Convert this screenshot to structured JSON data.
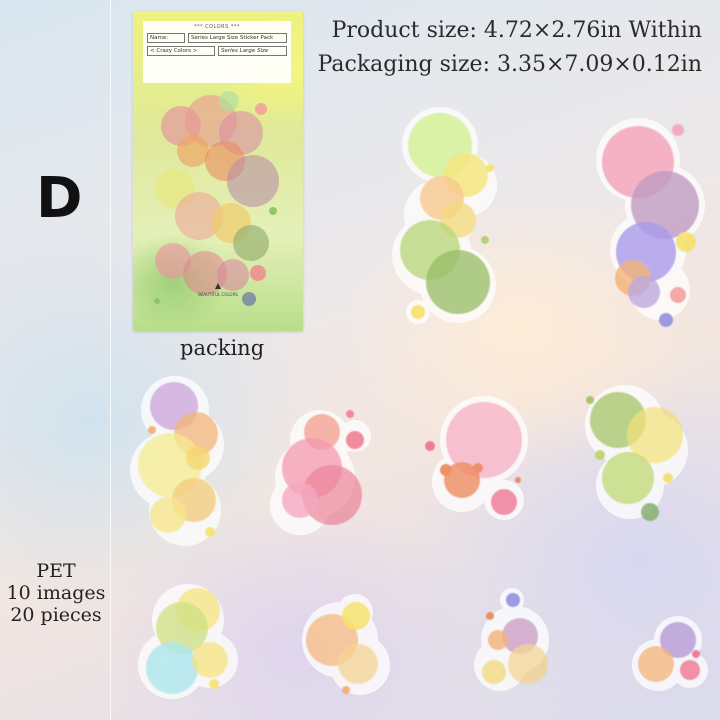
{
  "variant_letter": "D",
  "specs": {
    "product_size": "Product size:  4.72×2.76in Within",
    "packaging_size": "Packaging size:  3.35×7.09×0.12in"
  },
  "packaging": {
    "caption": "packing",
    "card_title": "*** COLORS ***",
    "name_label": "Name:",
    "series_name": "Series Large Size Sticker Pack",
    "collection": "< Crazy Colors >",
    "brand_script": "Series Large Size",
    "footer": "BEAUTIFUL COLORS"
  },
  "material": {
    "type": "PET",
    "images": "10 images",
    "pieces": "20 pieces"
  },
  "colors": {
    "pink": "#f08ca8",
    "yellow": "#f5df55",
    "green": "#9cc95a",
    "purple": "#a98ad0",
    "orange": "#f3a86a",
    "cyan": "#9fe3ea",
    "red": "#ea6f8a"
  }
}
